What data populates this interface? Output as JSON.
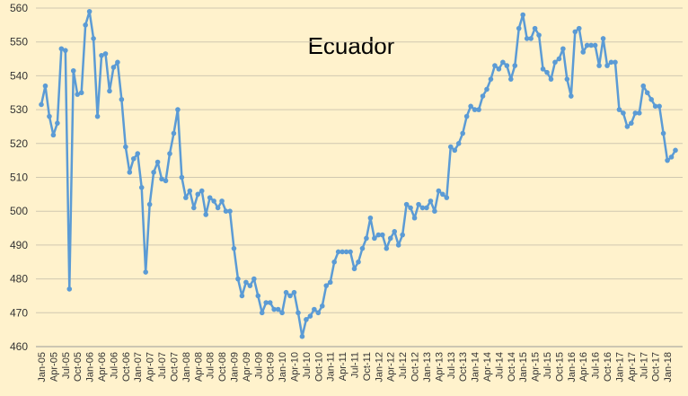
{
  "chart_data": {
    "type": "line",
    "title": "Ecuador",
    "categories": [
      "Jan-05",
      null,
      null,
      "Apr-05",
      null,
      null,
      "Jul-05",
      null,
      null,
      "Oct-05",
      null,
      null,
      "Jan-06",
      null,
      null,
      "Apr-06",
      null,
      null,
      "Jul-06",
      null,
      null,
      "Oct-06",
      null,
      null,
      "Jan-07",
      null,
      null,
      "Apr-07",
      null,
      null,
      "Jul-07",
      null,
      null,
      "Oct-07",
      null,
      null,
      "Jan-08",
      null,
      null,
      "Apr-08",
      null,
      null,
      "Jul-08",
      null,
      null,
      "Oct-08",
      null,
      null,
      "Jan-09",
      null,
      null,
      "Apr-09",
      null,
      null,
      "Jul-09",
      null,
      null,
      "Oct-09",
      null,
      null,
      "Jan-10",
      null,
      null,
      "Apr-10",
      null,
      null,
      "Jul-10",
      null,
      null,
      "Oct-10",
      null,
      null,
      "Jan-11",
      null,
      null,
      "Apr-11",
      null,
      null,
      "Jul-11",
      null,
      null,
      "Oct-11",
      null,
      null,
      "Jan-12",
      null,
      null,
      "Apr-12",
      null,
      null,
      "Jul-12",
      null,
      null,
      "Oct-12",
      null,
      null,
      "Jan-13",
      null,
      null,
      "Apr-13",
      null,
      null,
      "Jul-13",
      null,
      null,
      "Oct-13",
      null,
      null,
      "Jan-14",
      null,
      null,
      "Apr-14",
      null,
      null,
      "Jul-14",
      null,
      null,
      "Oct-14",
      null,
      null,
      "Jan-15",
      null,
      null,
      "Apr-15",
      null,
      null,
      "Jul-15",
      null,
      null,
      "Oct-15",
      null,
      null,
      "Jan-16",
      null,
      null,
      "Apr-16",
      null,
      null,
      "Jul-16",
      null,
      null,
      "Oct-16",
      null,
      null,
      "Jan-17",
      null,
      null,
      "Apr-17",
      null,
      null,
      "Jul-17",
      null,
      null,
      "Oct-17",
      null,
      null,
      "Jan-18",
      null,
      null
    ],
    "values": [
      531.5,
      537,
      528,
      522.5,
      526,
      548,
      547.5,
      477,
      541.5,
      534.5,
      535,
      555,
      559,
      551,
      528,
      546,
      546.5,
      535.5,
      542.5,
      544,
      533,
      519,
      511.5,
      515.5,
      517,
      507,
      482,
      502,
      511.5,
      514.5,
      509.5,
      509,
      517,
      523,
      530,
      510,
      504,
      506,
      501,
      505,
      506,
      499,
      504,
      503,
      501,
      503,
      500,
      500,
      489,
      480,
      475,
      479,
      478,
      480,
      475,
      470,
      473,
      473,
      471,
      471,
      470,
      476,
      475,
      476,
      470,
      463,
      468,
      469,
      471,
      470,
      472,
      478,
      479,
      485,
      488,
      488,
      488,
      488,
      483,
      485,
      489,
      492,
      498,
      492,
      493,
      493,
      489,
      492,
      494,
      490,
      493,
      502,
      501,
      498,
      502,
      501,
      501,
      503,
      500,
      506,
      505,
      504,
      519,
      518,
      520,
      523,
      528,
      531,
      530,
      530,
      534,
      536,
      539,
      543,
      542,
      544,
      543,
      539,
      543,
      554,
      558,
      551,
      551,
      554,
      552,
      542,
      541,
      539,
      544,
      545,
      548,
      539,
      534,
      553,
      554,
      547,
      549,
      549,
      549,
      543,
      551,
      543,
      544,
      544,
      530,
      529,
      525,
      526,
      529,
      529,
      537,
      535,
      533,
      531,
      531,
      523,
      515,
      516,
      518
    ],
    "color": "#5b9bd5",
    "ylim": [
      460,
      560
    ],
    "yticks": [
      460,
      470,
      480,
      490,
      500,
      510,
      520,
      530,
      540,
      550,
      560
    ],
    "grid": true
  }
}
